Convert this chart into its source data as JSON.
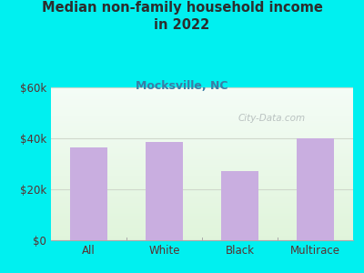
{
  "title": "Median non-family household income\nin 2022",
  "subtitle": "Mocksville, NC",
  "categories": [
    "All",
    "White",
    "Black",
    "Multirace"
  ],
  "values": [
    36500,
    38500,
    27000,
    40000
  ],
  "bar_color": "#c9aee0",
  "ylim": [
    0,
    60000
  ],
  "yticks": [
    0,
    20000,
    40000,
    60000
  ],
  "ytick_labels": [
    "$0",
    "$20k",
    "$40k",
    "$60k"
  ],
  "bg_outer": "#00f0f0",
  "title_color": "#2d2d2d",
  "subtitle_color": "#3a7ca5",
  "tick_label_color": "#5a3030",
  "watermark": "City-Data.com",
  "grid_color": "#d0d8cc",
  "chart_bg_colors": [
    "#e8f5e2",
    "#f7fff5",
    "#f0f7ea",
    "#fafffe"
  ]
}
